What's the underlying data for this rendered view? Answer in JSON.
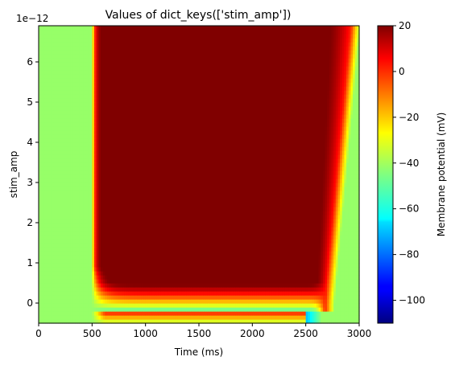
{
  "chart_data": {
    "type": "heatmap",
    "title": "Values of dict_keys(['stim_amp'])",
    "xlabel": "Time (ms)",
    "ylabel": "stim_amp",
    "y_offset_label": "1e−12",
    "xlim": [
      0,
      3000
    ],
    "ylim": [
      -0.5,
      6.9
    ],
    "x_ticks": [
      0,
      500,
      1000,
      1500,
      2000,
      2500,
      3000
    ],
    "x_tick_labels": [
      "0",
      "500",
      "1000",
      "1500",
      "2000",
      "2500",
      "3000"
    ],
    "y_ticks": [
      0,
      1,
      2,
      3,
      4,
      5,
      6
    ],
    "y_tick_labels": [
      "0",
      "1",
      "2",
      "3",
      "4",
      "5",
      "6"
    ],
    "stim_onset_ms": 500,
    "stim_offset_ms": 2500,
    "resting_potential_mV": -42,
    "colorbar": {
      "label": "Membrane potential (mV)",
      "min": -110,
      "max": 20,
      "ticks": [
        20,
        0,
        -20,
        -40,
        -60,
        -80,
        -100
      ],
      "tick_labels": [
        "20",
        "0",
        "−20",
        "−40",
        "−60",
        "−80",
        "−100"
      ],
      "colormap": "jet"
    }
  }
}
